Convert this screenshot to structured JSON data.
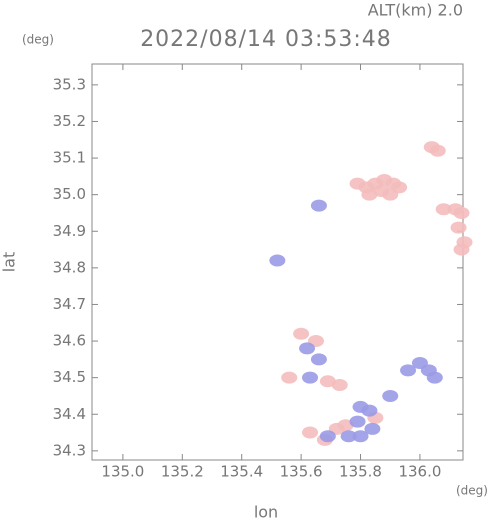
{
  "chart_data": {
    "type": "scatter",
    "title": "2022/08/14 03:53:48",
    "annotation": "ALT(km) 2.0",
    "y_unit": "(deg)",
    "x_unit": "(deg)",
    "xlabel": "lon",
    "ylabel": "lat",
    "xlim": [
      134.896,
      136.145
    ],
    "ylim": [
      34.275,
      35.357
    ],
    "xticks": [
      {
        "value": 135.0,
        "label": "135.0"
      },
      135.2,
      135.4,
      135.6,
      135.8,
      {
        "value": 136.0,
        "label": "136.0"
      }
    ],
    "yticks": [
      34.3,
      34.4,
      34.5,
      34.6,
      34.7,
      34.8,
      34.9,
      {
        "value": 35.0,
        "label": "35.0"
      },
      35.1,
      35.2,
      35.3
    ],
    "series": [
      {
        "color": "#f4bcbc",
        "x": [
          135.79,
          135.82,
          135.85,
          135.88,
          135.91,
          135.93,
          135.87,
          135.83,
          135.9,
          136.08,
          136.12,
          136.14,
          136.13,
          136.14,
          136.15,
          136.04,
          136.06,
          135.6,
          135.65,
          135.69,
          135.73,
          135.56,
          135.72,
          135.75,
          135.63,
          135.68,
          135.85
        ],
        "values": [
          35.03,
          35.02,
          35.03,
          35.04,
          35.03,
          35.02,
          35.01,
          35.0,
          35.0,
          34.96,
          34.96,
          34.95,
          34.91,
          34.85,
          34.87,
          35.13,
          35.12,
          34.62,
          34.6,
          34.49,
          34.48,
          34.5,
          34.36,
          34.37,
          34.35,
          34.33,
          34.39
        ]
      },
      {
        "color": "#9a9ae6",
        "x": [
          135.62,
          135.66,
          135.63,
          135.96,
          136.0,
          136.03,
          136.05,
          135.8,
          135.83,
          135.79,
          135.76,
          135.8,
          135.84,
          135.69,
          135.52,
          135.66,
          135.9
        ],
        "values": [
          34.58,
          34.55,
          34.5,
          34.52,
          34.54,
          34.52,
          34.5,
          34.42,
          34.41,
          34.38,
          34.34,
          34.34,
          34.36,
          34.34,
          34.82,
          34.97,
          34.45
        ]
      }
    ]
  }
}
